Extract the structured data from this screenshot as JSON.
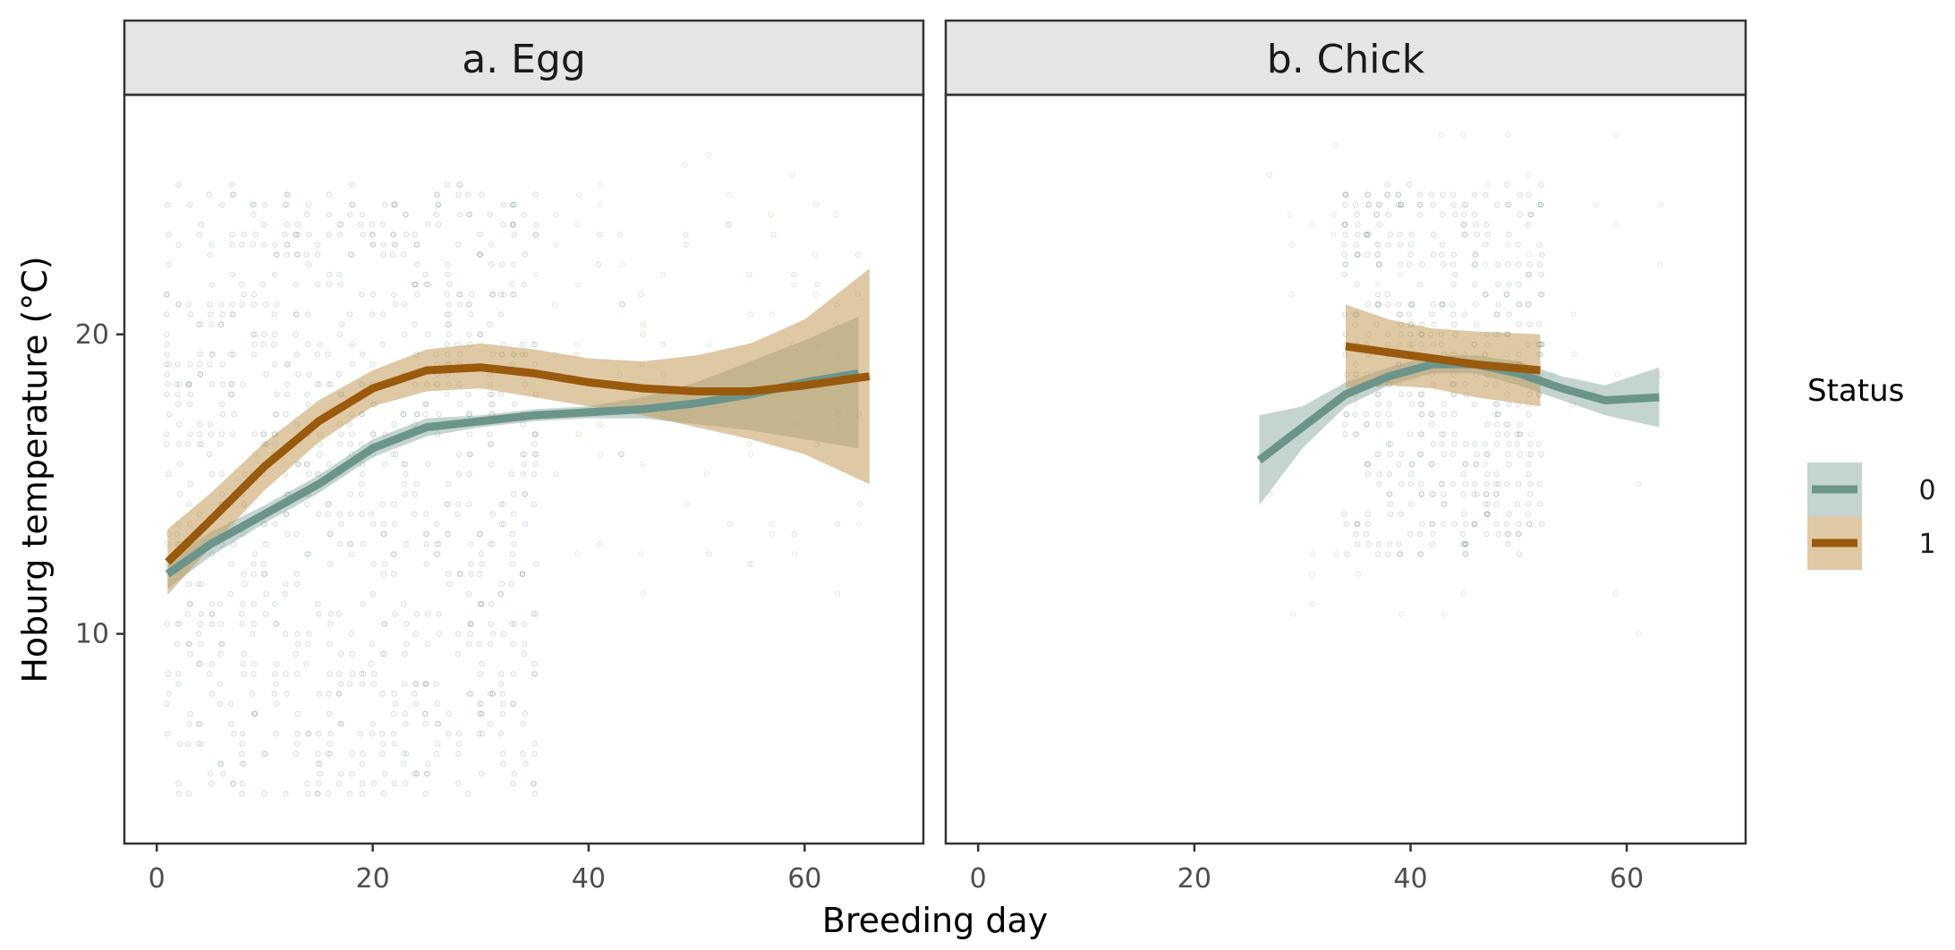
{
  "chart_data": {
    "type": "scatter",
    "xlabel": "Breeding day",
    "ylabel": "Hoburg temperature (°C)",
    "xlim": [
      -3,
      71
    ],
    "ylim": [
      3,
      28
    ],
    "xticks": [
      0,
      20,
      40,
      60
    ],
    "yticks": [
      10,
      20
    ],
    "legend": {
      "title": "Status",
      "placement": "right",
      "entries": [
        {
          "label": "0",
          "color": "#6b958b"
        },
        {
          "label": "1",
          "color": "#9a5a0c"
        }
      ]
    },
    "colors": {
      "status_0": "#6b958b",
      "status_1": "#9a5a0c",
      "ribbon_1": "#c49a5a",
      "strip_bg": "#e5e5e5"
    },
    "panels": [
      {
        "name": "a. Egg",
        "points": [
          {
            "status": "0",
            "x_min": 1,
            "x_max": 35,
            "y_min": 4.5,
            "y_max": 25,
            "dense": true
          },
          {
            "status": "0",
            "x_min": 35,
            "x_max": 66,
            "y_min": 11,
            "y_max": 26,
            "dense": false
          },
          {
            "status": "1",
            "x_min": 25,
            "x_max": 66,
            "y_min": 12,
            "y_max": 24,
            "dense": false
          }
        ],
        "series": [
          {
            "name": "0",
            "x": [
              1,
              5,
              10,
              15,
              20,
              25,
              30,
              35,
              40,
              45,
              50,
              55,
              60,
              65
            ],
            "y": [
              12.0,
              13.0,
              14.0,
              15.0,
              16.2,
              16.9,
              17.1,
              17.3,
              17.4,
              17.5,
              17.7,
              18.0,
              18.4,
              18.7
            ],
            "lower": [
              11.5,
              12.6,
              13.7,
              14.7,
              15.9,
              16.6,
              16.9,
              17.1,
              17.2,
              17.2,
              17.0,
              16.8,
              16.5,
              16.2
            ],
            "upper": [
              12.5,
              13.4,
              14.3,
              15.3,
              16.5,
              17.2,
              17.3,
              17.5,
              17.6,
              17.9,
              18.4,
              19.1,
              19.8,
              20.6
            ]
          },
          {
            "name": "1",
            "x": [
              1,
              5,
              10,
              15,
              20,
              25,
              30,
              35,
              40,
              45,
              50,
              55,
              60,
              66
            ],
            "y": [
              12.4,
              13.8,
              15.6,
              17.1,
              18.2,
              18.8,
              18.9,
              18.7,
              18.4,
              18.2,
              18.1,
              18.1,
              18.3,
              18.6
            ],
            "lower": [
              11.3,
              12.9,
              14.8,
              16.4,
              17.6,
              18.1,
              18.2,
              17.9,
              17.6,
              17.3,
              16.9,
              16.5,
              16.0,
              15.0
            ],
            "upper": [
              13.5,
              14.7,
              16.4,
              17.8,
              18.8,
              19.5,
              19.7,
              19.5,
              19.2,
              19.1,
              19.3,
              19.7,
              20.5,
              22.2
            ]
          }
        ]
      },
      {
        "name": "b. Chick",
        "points": [
          {
            "status": "0",
            "x_min": 27,
            "x_max": 63,
            "y_min": 10,
            "y_max": 27,
            "dense": false
          },
          {
            "status": "0",
            "x_min": 34,
            "x_max": 52,
            "y_min": 12.5,
            "y_max": 25,
            "dense": true
          }
        ],
        "series": [
          {
            "name": "0",
            "x": [
              26,
              30,
              34,
              38,
              42,
              46,
              50,
              54,
              58,
              63
            ],
            "y": [
              15.8,
              16.9,
              18.0,
              18.6,
              19.0,
              19.0,
              18.7,
              18.2,
              17.8,
              17.9
            ],
            "lower": [
              14.3,
              16.2,
              17.6,
              18.3,
              18.7,
              18.7,
              18.3,
              17.8,
              17.3,
              16.9
            ],
            "upper": [
              17.3,
              17.6,
              18.4,
              18.9,
              19.3,
              19.3,
              19.1,
              18.6,
              18.3,
              18.9
            ]
          },
          {
            "name": "1",
            "x": [
              34,
              38,
              42,
              46,
              52
            ],
            "y": [
              19.6,
              19.4,
              19.2,
              19.0,
              18.8
            ],
            "lower": [
              18.2,
              18.3,
              18.2,
              17.9,
              17.6
            ],
            "upper": [
              21.0,
              20.5,
              20.2,
              20.1,
              20.0
            ]
          }
        ]
      }
    ]
  }
}
